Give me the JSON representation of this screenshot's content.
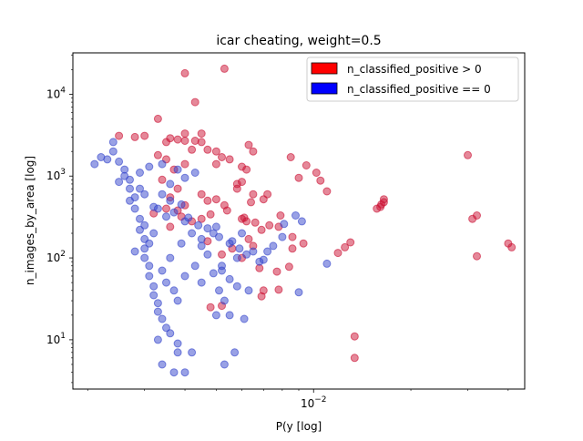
{
  "chart_data": {
    "type": "scatter",
    "title": "icar cheating, weight=0.5",
    "xlabel": "P(y [log]",
    "ylabel": "n_images_by_area [log]",
    "xscale": "log",
    "yscale": "log",
    "xlim": [
      0.0018,
      0.045
    ],
    "ylim": [
      2.5,
      32000
    ],
    "xticks": [
      {
        "value": 0.01,
        "base": "10",
        "exp": "−2"
      }
    ],
    "yticks": [
      {
        "value": 10,
        "base": "10",
        "exp": "1"
      },
      {
        "value": 100,
        "base": "10",
        "exp": "2"
      },
      {
        "value": 1000,
        "base": "10",
        "exp": "3"
      },
      {
        "value": 10000,
        "base": "10",
        "exp": "4"
      }
    ],
    "grid": false,
    "legend_position": "top-right",
    "series": [
      {
        "name": "n_classified_positive > 0",
        "color": "#cc1133",
        "legend_color": "#ff0000",
        "points": [
          [
            0.004,
            18000
          ],
          [
            0.0053,
            20500
          ],
          [
            0.0043,
            8000
          ],
          [
            0.0033,
            5000
          ],
          [
            0.004,
            3300
          ],
          [
            0.0045,
            3300
          ],
          [
            0.0036,
            2900
          ],
          [
            0.0038,
            2800
          ],
          [
            0.004,
            2700
          ],
          [
            0.0035,
            2600
          ],
          [
            0.0043,
            2700
          ],
          [
            0.0045,
            2600
          ],
          [
            0.0025,
            3100
          ],
          [
            0.0028,
            3000
          ],
          [
            0.003,
            3100
          ],
          [
            0.0042,
            2100
          ],
          [
            0.0047,
            2100
          ],
          [
            0.005,
            2000
          ],
          [
            0.0063,
            2400
          ],
          [
            0.0065,
            2000
          ],
          [
            0.0052,
            1700
          ],
          [
            0.0055,
            1600
          ],
          [
            0.005,
            1400
          ],
          [
            0.004,
            1400
          ],
          [
            0.006,
            1300
          ],
          [
            0.0062,
            1200
          ],
          [
            0.0085,
            1700
          ],
          [
            0.0095,
            1350
          ],
          [
            0.0102,
            1100
          ],
          [
            0.009,
            950
          ],
          [
            0.0105,
            880
          ],
          [
            0.011,
            650
          ],
          [
            0.03,
            1800
          ],
          [
            0.006,
            850
          ],
          [
            0.0058,
            800
          ],
          [
            0.0065,
            600
          ],
          [
            0.007,
            520
          ],
          [
            0.0072,
            600
          ],
          [
            0.0064,
            480
          ],
          [
            0.0058,
            700
          ],
          [
            0.0053,
            440
          ],
          [
            0.0054,
            380
          ],
          [
            0.005,
            520
          ],
          [
            0.0045,
            600
          ],
          [
            0.0047,
            500
          ],
          [
            0.004,
            440
          ],
          [
            0.0038,
            380
          ],
          [
            0.0035,
            400
          ],
          [
            0.0039,
            320
          ],
          [
            0.0048,
            340
          ],
          [
            0.0042,
            280
          ],
          [
            0.0045,
            300
          ],
          [
            0.0036,
            240
          ],
          [
            0.0061,
            310
          ],
          [
            0.006,
            300
          ],
          [
            0.0062,
            280
          ],
          [
            0.0066,
            270
          ],
          [
            0.0079,
            330
          ],
          [
            0.0073,
            250
          ],
          [
            0.0078,
            240
          ],
          [
            0.0069,
            220
          ],
          [
            0.0086,
            180
          ],
          [
            0.0093,
            150
          ],
          [
            0.0086,
            130
          ],
          [
            0.0065,
            140
          ],
          [
            0.0056,
            130
          ],
          [
            0.0063,
            170
          ],
          [
            0.0047,
            160
          ],
          [
            0.0052,
            110
          ],
          [
            0.006,
            100
          ],
          [
            0.0068,
            75
          ],
          [
            0.0077,
            68
          ],
          [
            0.0084,
            78
          ],
          [
            0.007,
            40
          ],
          [
            0.0078,
            41
          ],
          [
            0.0069,
            34
          ],
          [
            0.0048,
            25
          ],
          [
            0.0052,
            26
          ],
          [
            0.013,
            155
          ],
          [
            0.0125,
            135
          ],
          [
            0.0119,
            115
          ],
          [
            0.0165,
            520
          ],
          [
            0.0162,
            450
          ],
          [
            0.0161,
            420
          ],
          [
            0.0157,
            400
          ],
          [
            0.0165,
            480
          ],
          [
            0.031,
            300
          ],
          [
            0.032,
            330
          ],
          [
            0.032,
            105
          ],
          [
            0.04,
            150
          ],
          [
            0.041,
            135
          ],
          [
            0.0134,
            11
          ],
          [
            0.0134,
            6
          ],
          [
            0.0033,
            1800
          ],
          [
            0.0035,
            1600
          ],
          [
            0.0037,
            1200
          ],
          [
            0.0034,
            900
          ],
          [
            0.0038,
            700
          ],
          [
            0.0036,
            550
          ],
          [
            0.0032,
            350
          ]
        ]
      },
      {
        "name": "n_classified_positive == 0",
        "color": "#3344cc",
        "legend_color": "#0000ff",
        "points": [
          [
            0.0024,
            2600
          ],
          [
            0.0024,
            2000
          ],
          [
            0.0025,
            1500
          ],
          [
            0.0026,
            1200
          ],
          [
            0.0027,
            900
          ],
          [
            0.0027,
            700
          ],
          [
            0.0028,
            550
          ],
          [
            0.0028,
            400
          ],
          [
            0.0029,
            300
          ],
          [
            0.0029,
            220
          ],
          [
            0.003,
            170
          ],
          [
            0.003,
            130
          ],
          [
            0.003,
            100
          ],
          [
            0.0031,
            80
          ],
          [
            0.0031,
            60
          ],
          [
            0.0032,
            45
          ],
          [
            0.0032,
            35
          ],
          [
            0.0033,
            28
          ],
          [
            0.0033,
            22
          ],
          [
            0.0034,
            18
          ],
          [
            0.0035,
            14
          ],
          [
            0.0033,
            10
          ],
          [
            0.0036,
            12
          ],
          [
            0.0038,
            9
          ],
          [
            0.0038,
            7
          ],
          [
            0.0034,
            5
          ],
          [
            0.0037,
            4
          ],
          [
            0.004,
            4
          ],
          [
            0.0042,
            7
          ],
          [
            0.0053,
            5
          ],
          [
            0.0057,
            7
          ],
          [
            0.005,
            20
          ],
          [
            0.0055,
            20
          ],
          [
            0.0061,
            18
          ],
          [
            0.0045,
            50
          ],
          [
            0.0052,
            70
          ],
          [
            0.0055,
            55
          ],
          [
            0.0058,
            45
          ],
          [
            0.0063,
            40
          ],
          [
            0.0065,
            120
          ],
          [
            0.0058,
            100
          ],
          [
            0.0052,
            80
          ],
          [
            0.007,
            95
          ],
          [
            0.0075,
            140
          ],
          [
            0.0072,
            120
          ],
          [
            0.008,
            180
          ],
          [
            0.0088,
            330
          ],
          [
            0.0092,
            280
          ],
          [
            0.0081,
            260
          ],
          [
            0.006,
            200
          ],
          [
            0.0055,
            150
          ],
          [
            0.0045,
            170
          ],
          [
            0.0045,
            140
          ],
          [
            0.0042,
            200
          ],
          [
            0.005,
            240
          ],
          [
            0.004,
            280
          ],
          [
            0.0035,
            320
          ],
          [
            0.0032,
            420
          ],
          [
            0.003,
            600
          ],
          [
            0.0036,
            800
          ],
          [
            0.004,
            950
          ],
          [
            0.0043,
            1100
          ],
          [
            0.0038,
            1200
          ],
          [
            0.0034,
            1400
          ],
          [
            0.0031,
            1300
          ],
          [
            0.0029,
            1100
          ],
          [
            0.0026,
            1000
          ],
          [
            0.0025,
            850
          ],
          [
            0.0023,
            1600
          ],
          [
            0.0022,
            1700
          ],
          [
            0.0021,
            1400
          ],
          [
            0.0027,
            500
          ],
          [
            0.0033,
            400
          ],
          [
            0.0037,
            360
          ],
          [
            0.0041,
            310
          ],
          [
            0.0044,
            250
          ],
          [
            0.0047,
            230
          ],
          [
            0.0049,
            200
          ],
          [
            0.0051,
            180
          ],
          [
            0.0056,
            160
          ],
          [
            0.0059,
            130
          ],
          [
            0.0062,
            110
          ],
          [
            0.0068,
            90
          ],
          [
            0.009,
            38
          ],
          [
            0.011,
            85
          ],
          [
            0.0032,
            200
          ],
          [
            0.0031,
            150
          ],
          [
            0.0028,
            120
          ],
          [
            0.003,
            250
          ],
          [
            0.0029,
            700
          ],
          [
            0.0034,
            600
          ],
          [
            0.0036,
            500
          ],
          [
            0.0039,
            450
          ],
          [
            0.0039,
            150
          ],
          [
            0.0036,
            100
          ],
          [
            0.0034,
            70
          ],
          [
            0.0035,
            50
          ],
          [
            0.0037,
            40
          ],
          [
            0.0038,
            30
          ],
          [
            0.004,
            60
          ],
          [
            0.0043,
            80
          ],
          [
            0.0047,
            110
          ],
          [
            0.0049,
            65
          ],
          [
            0.0051,
            40
          ],
          [
            0.0053,
            30
          ]
        ]
      }
    ]
  }
}
